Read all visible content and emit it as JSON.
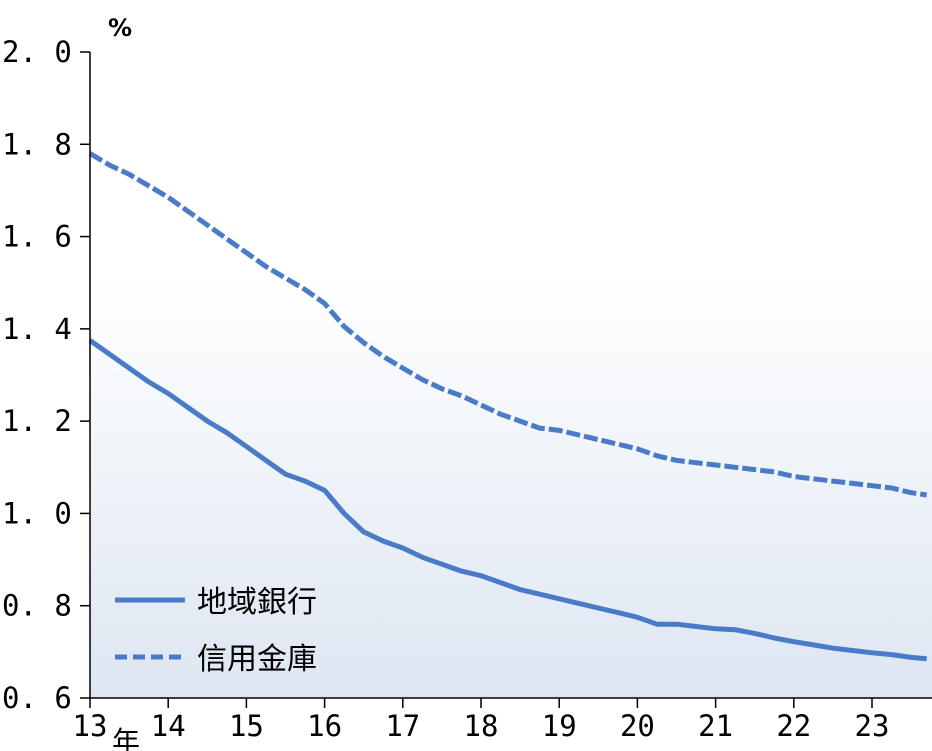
{
  "chart_data": {
    "type": "line",
    "title": "",
    "xlabel": "",
    "ylabel": "%",
    "year_suffix": "年",
    "xlim": [
      13,
      23.7
    ],
    "ylim": [
      0.6,
      2.0
    ],
    "yticks": [
      0.6,
      0.8,
      1.0,
      1.2,
      1.4,
      1.6,
      1.8,
      2.0
    ],
    "ytick_labels": [
      "0. 6",
      "0. 8",
      "1. 0",
      "1. 2",
      "1. 4",
      "1. 6",
      "1. 8",
      "2. 0"
    ],
    "xticks": [
      13,
      14,
      15,
      16,
      17,
      18,
      19,
      20,
      21,
      22,
      23
    ],
    "xtick_labels": [
      "13",
      "14",
      "15",
      "16",
      "17",
      "18",
      "19",
      "20",
      "21",
      "22",
      "23"
    ],
    "grid": false,
    "legend_position": "bottom-left",
    "series": [
      {
        "name": "地域銀行",
        "style": "solid",
        "color": "#4a7bc8",
        "x": [
          13.0,
          13.25,
          13.5,
          13.75,
          14.0,
          14.25,
          14.5,
          14.75,
          15.0,
          15.25,
          15.5,
          15.75,
          16.0,
          16.25,
          16.5,
          16.75,
          17.0,
          17.25,
          17.5,
          17.75,
          18.0,
          18.25,
          18.5,
          18.75,
          19.0,
          19.25,
          19.5,
          19.75,
          20.0,
          20.25,
          20.5,
          20.75,
          21.0,
          21.25,
          21.5,
          21.75,
          22.0,
          22.25,
          22.5,
          22.75,
          23.0,
          23.25,
          23.5,
          23.7
        ],
        "y": [
          1.375,
          1.345,
          1.315,
          1.285,
          1.26,
          1.23,
          1.2,
          1.175,
          1.145,
          1.115,
          1.085,
          1.07,
          1.05,
          1.0,
          0.96,
          0.94,
          0.925,
          0.905,
          0.89,
          0.875,
          0.865,
          0.85,
          0.835,
          0.825,
          0.815,
          0.805,
          0.795,
          0.785,
          0.775,
          0.76,
          0.76,
          0.755,
          0.75,
          0.748,
          0.74,
          0.73,
          0.722,
          0.715,
          0.708,
          0.703,
          0.698,
          0.694,
          0.688,
          0.685
        ]
      },
      {
        "name": "信用金庫",
        "style": "dashed",
        "color": "#4a7bc8",
        "x": [
          13.0,
          13.25,
          13.5,
          13.75,
          14.0,
          14.25,
          14.5,
          14.75,
          15.0,
          15.25,
          15.5,
          15.75,
          16.0,
          16.25,
          16.5,
          16.75,
          17.0,
          17.25,
          17.5,
          17.75,
          18.0,
          18.25,
          18.5,
          18.75,
          19.0,
          19.25,
          19.5,
          19.75,
          20.0,
          20.25,
          20.5,
          20.75,
          21.0,
          21.25,
          21.5,
          21.75,
          22.0,
          22.25,
          22.5,
          22.75,
          23.0,
          23.25,
          23.5,
          23.7
        ],
        "y": [
          1.78,
          1.755,
          1.735,
          1.71,
          1.685,
          1.655,
          1.625,
          1.595,
          1.565,
          1.535,
          1.51,
          1.485,
          1.455,
          1.405,
          1.37,
          1.34,
          1.315,
          1.29,
          1.27,
          1.255,
          1.235,
          1.215,
          1.2,
          1.185,
          1.18,
          1.17,
          1.16,
          1.15,
          1.14,
          1.125,
          1.115,
          1.11,
          1.105,
          1.1,
          1.095,
          1.09,
          1.08,
          1.075,
          1.07,
          1.065,
          1.06,
          1.055,
          1.045,
          1.04
        ]
      }
    ]
  }
}
